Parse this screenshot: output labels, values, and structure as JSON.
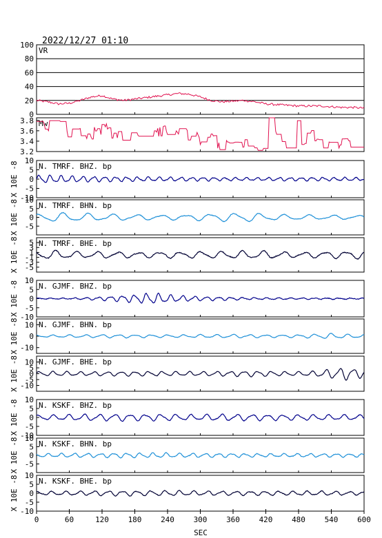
{
  "header": {
    "datetime": "2022/12/27 01:10"
  },
  "xaxis": {
    "label": "SEC",
    "range": [
      0,
      600
    ],
    "ticks": [
      0,
      60,
      120,
      180,
      240,
      300,
      360,
      420,
      480,
      540,
      600
    ],
    "tick_labels": [
      "0",
      "60",
      "120",
      "180",
      "240",
      "300",
      "360",
      "420",
      "480",
      "540",
      "600"
    ]
  },
  "colors": {
    "vr": "#e0104e",
    "mw": "#e0104e",
    "BHZ": "#00008b",
    "BHN": "#1e90d8",
    "BHE": "#000033"
  },
  "chart_data": [
    {
      "type": "line",
      "panel": "VR",
      "label": "VR",
      "ylim": [
        0,
        100
      ],
      "yticks": [
        0,
        20,
        40,
        60,
        80,
        100
      ],
      "grid": true,
      "x": [
        0,
        20,
        40,
        60,
        80,
        100,
        120,
        140,
        160,
        180,
        200,
        220,
        240,
        260,
        280,
        300,
        320,
        340,
        360,
        380,
        400,
        420,
        440,
        460,
        480,
        500,
        520,
        540,
        560,
        580,
        600
      ],
      "values": [
        20,
        18,
        15,
        16,
        20,
        25,
        27,
        22,
        20,
        22,
        24,
        26,
        28,
        30,
        29,
        25,
        20,
        18,
        19,
        20,
        18,
        15,
        14,
        13,
        12,
        12,
        12,
        11,
        10,
        10,
        9
      ]
    },
    {
      "type": "line",
      "panel": "MW",
      "label": "Mw",
      "ylim": [
        3.2,
        3.85
      ],
      "yticks": [
        3.2,
        3.4,
        3.6,
        3.8
      ],
      "ytick_labels": [
        "3.2",
        "3.4",
        "3.6",
        "3.8"
      ],
      "x": [
        0,
        15,
        30,
        45,
        60,
        75,
        90,
        105,
        120,
        135,
        150,
        165,
        180,
        195,
        210,
        225,
        240,
        255,
        270,
        285,
        300,
        315,
        330,
        345,
        360,
        375,
        390,
        405,
        420,
        435,
        450,
        465,
        480,
        495,
        510,
        525,
        540,
        555,
        570,
        585,
        600
      ],
      "values": [
        3.78,
        3.7,
        3.72,
        3.55,
        3.55,
        3.6,
        3.52,
        3.6,
        3.68,
        3.55,
        3.5,
        3.55,
        3.5,
        3.55,
        3.58,
        3.6,
        3.55,
        3.55,
        3.52,
        3.5,
        3.42,
        3.48,
        3.3,
        3.35,
        3.3,
        3.35,
        3.32,
        3.3,
        3.85,
        3.5,
        3.3,
        3.7,
        3.3,
        3.6,
        3.4,
        3.3,
        3.35,
        3.4,
        3.38,
        3.4,
        3.4
      ]
    },
    {
      "type": "line",
      "station": "TMRF",
      "label": "N. TMRF. BHZ. bp",
      "component": "BHZ",
      "ylabel": "X 10E -8",
      "ylim": [
        -10,
        10
      ],
      "yticks": [
        -10,
        -5,
        0,
        5,
        10
      ],
      "amp": 2.2,
      "period": 20,
      "phase": 0.0,
      "x": [
        0,
        30,
        60,
        90,
        120,
        150,
        180,
        210,
        240,
        270,
        300,
        330,
        360,
        390,
        420,
        450,
        480,
        510,
        540,
        570,
        600
      ],
      "values": [
        2.2,
        2.0,
        1.8,
        1.6,
        1.4,
        1.3,
        1.2,
        1.1,
        1.1,
        1.0,
        1.0,
        0.9,
        0.9,
        0.8,
        0.8,
        0.9,
        0.9,
        1.0,
        0.9,
        0.9,
        0.8
      ]
    },
    {
      "type": "line",
      "station": "TMRF",
      "label": "N. TMRF. BHN. bp",
      "component": "BHN",
      "ylabel": "X 10E -8",
      "ylim": [
        -10,
        10
      ],
      "yticks": [
        -5,
        0,
        5,
        10
      ],
      "amp": 2.0,
      "period": 45,
      "phase": 1.0,
      "x": [
        0,
        30,
        60,
        90,
        120,
        150,
        180,
        210,
        240,
        270,
        300,
        330,
        360,
        390,
        420,
        450,
        480,
        510,
        540,
        570,
        600
      ],
      "values": [
        1.6,
        2.6,
        2.4,
        2.2,
        1.8,
        1.8,
        1.6,
        1.4,
        1.4,
        1.5,
        1.8,
        2.2,
        2.4,
        2.6,
        1.8,
        1.6,
        1.4,
        1.3,
        1.2,
        1.2,
        1.2
      ]
    },
    {
      "type": "line",
      "station": "TMRF",
      "label": "N. TMRF. BHE. bp",
      "component": "BHE",
      "ylabel": "X 10E -8",
      "ylim": [
        -7,
        7
      ],
      "yticks": [
        -5,
        -3,
        -1,
        1,
        3,
        5
      ],
      "ytick_labels": [
        "-5",
        "-3",
        "-1",
        "1",
        "3",
        "5"
      ],
      "amp": 1.4,
      "period": 38,
      "phase": 2.0,
      "x": [
        0,
        30,
        60,
        90,
        120,
        150,
        180,
        210,
        240,
        270,
        300,
        330,
        360,
        390,
        420,
        450,
        480,
        510,
        540,
        570,
        600
      ],
      "values": [
        1.6,
        1.8,
        1.4,
        1.2,
        1.4,
        1.2,
        1.1,
        1.2,
        1.3,
        1.2,
        1.4,
        1.4,
        1.5,
        1.6,
        1.6,
        1.2,
        1.1,
        1.2,
        1.4,
        1.5,
        1.6
      ]
    },
    {
      "type": "line",
      "station": "GJMF",
      "label": "N. GJMF. BHZ. bp",
      "component": "BHZ",
      "ylabel": "X 10E -8",
      "ylim": [
        -10,
        10
      ],
      "yticks": [
        -10,
        -5,
        0,
        5,
        10
      ],
      "amp": 2.0,
      "period": 22,
      "phase": 0.5,
      "x": [
        0,
        30,
        60,
        90,
        120,
        150,
        180,
        210,
        240,
        270,
        300,
        330,
        360,
        390,
        420,
        450,
        480,
        510,
        540,
        570,
        600
      ],
      "values": [
        0.3,
        0.3,
        0.3,
        0.6,
        1.0,
        1.6,
        2.2,
        3.0,
        2.2,
        1.6,
        1.2,
        1.0,
        0.8,
        0.6,
        0.5,
        0.5,
        0.4,
        0.4,
        0.4,
        0.3,
        0.3
      ]
    },
    {
      "type": "line",
      "station": "GJMF",
      "label": "N. GJMF. BHN. bp",
      "component": "BHN",
      "ylabel": "X 10E -8",
      "ylim": [
        -15,
        15
      ],
      "yticks": [
        -10,
        0,
        10
      ],
      "amp": 1.2,
      "period": 30,
      "phase": 1.5,
      "x": [
        0,
        30,
        60,
        90,
        120,
        150,
        180,
        210,
        240,
        270,
        300,
        330,
        360,
        390,
        420,
        450,
        480,
        510,
        540,
        570,
        600
      ],
      "values": [
        1.0,
        1.0,
        1.2,
        1.2,
        1.4,
        1.4,
        1.3,
        1.3,
        1.2,
        1.2,
        1.4,
        1.4,
        1.6,
        1.4,
        1.2,
        1.2,
        1.3,
        1.8,
        2.4,
        1.6,
        1.4
      ]
    },
    {
      "type": "line",
      "station": "GJMF",
      "label": "N. GJMF. BHE. bp",
      "component": "BHE",
      "ylabel": "X 10E -8",
      "ylim": [
        -15,
        15
      ],
      "yticks": [
        -10,
        -5,
        0,
        5,
        10
      ],
      "amp": 2.0,
      "period": 25,
      "phase": 0.2,
      "x": [
        0,
        30,
        60,
        90,
        120,
        150,
        180,
        210,
        240,
        270,
        300,
        330,
        360,
        390,
        420,
        450,
        480,
        510,
        540,
        570,
        600
      ],
      "values": [
        1.8,
        2.0,
        1.8,
        1.6,
        1.8,
        1.8,
        2.0,
        2.0,
        1.8,
        1.8,
        1.8,
        2.0,
        2.2,
        2.4,
        2.2,
        1.8,
        1.8,
        2.2,
        4.0,
        5.5,
        3.0
      ]
    },
    {
      "type": "line",
      "station": "KSKF",
      "label": "N. KSKF. BHZ. bp",
      "component": "BHZ",
      "ylabel": "X 10E -8",
      "ylim": [
        -10,
        10
      ],
      "yticks": [
        -10,
        -5,
        0,
        5,
        10
      ],
      "amp": 1.5,
      "period": 28,
      "phase": 0.8,
      "x": [
        0,
        30,
        60,
        90,
        120,
        150,
        180,
        210,
        240,
        270,
        300,
        330,
        360,
        390,
        420,
        450,
        480,
        510,
        540,
        570,
        600
      ],
      "values": [
        1.4,
        1.4,
        1.6,
        1.8,
        1.8,
        2.0,
        1.8,
        1.8,
        1.8,
        1.6,
        1.6,
        1.8,
        1.8,
        1.8,
        1.6,
        1.6,
        1.6,
        1.6,
        1.5,
        1.5,
        1.5
      ]
    },
    {
      "type": "line",
      "station": "KSKF",
      "label": "N. KSKF. BHN. bp",
      "component": "BHN",
      "ylabel": "X 10E -8",
      "ylim": [
        -10,
        10
      ],
      "yticks": [
        -5,
        0,
        5,
        10
      ],
      "amp": 1.0,
      "period": 24,
      "phase": 2.2,
      "x": [
        0,
        30,
        60,
        90,
        120,
        150,
        180,
        210,
        240,
        270,
        300,
        330,
        360,
        390,
        420,
        450,
        480,
        510,
        540,
        570,
        600
      ],
      "values": [
        1.0,
        1.0,
        1.2,
        1.2,
        1.2,
        1.4,
        1.4,
        1.4,
        1.4,
        1.2,
        1.2,
        1.2,
        1.2,
        1.0,
        1.0,
        1.0,
        1.0,
        1.0,
        1.0,
        1.0,
        1.0
      ]
    },
    {
      "type": "line",
      "station": "KSKF",
      "label": "N. KSKF. BHE. bp",
      "component": "BHE",
      "ylabel": "X 10E -8",
      "ylim": [
        -10,
        10
      ],
      "yticks": [
        -10,
        -5,
        0,
        5,
        10
      ],
      "amp": 1.0,
      "period": 26,
      "phase": 1.1,
      "x": [
        0,
        30,
        60,
        90,
        120,
        150,
        180,
        210,
        240,
        270,
        300,
        330,
        360,
        390,
        420,
        450,
        480,
        510,
        540,
        570,
        600
      ],
      "values": [
        1.0,
        1.0,
        1.2,
        1.2,
        1.4,
        1.4,
        1.4,
        1.4,
        1.4,
        1.4,
        1.2,
        1.2,
        1.2,
        1.2,
        1.2,
        1.2,
        1.2,
        1.2,
        1.2,
        1.0,
        1.0
      ]
    }
  ]
}
